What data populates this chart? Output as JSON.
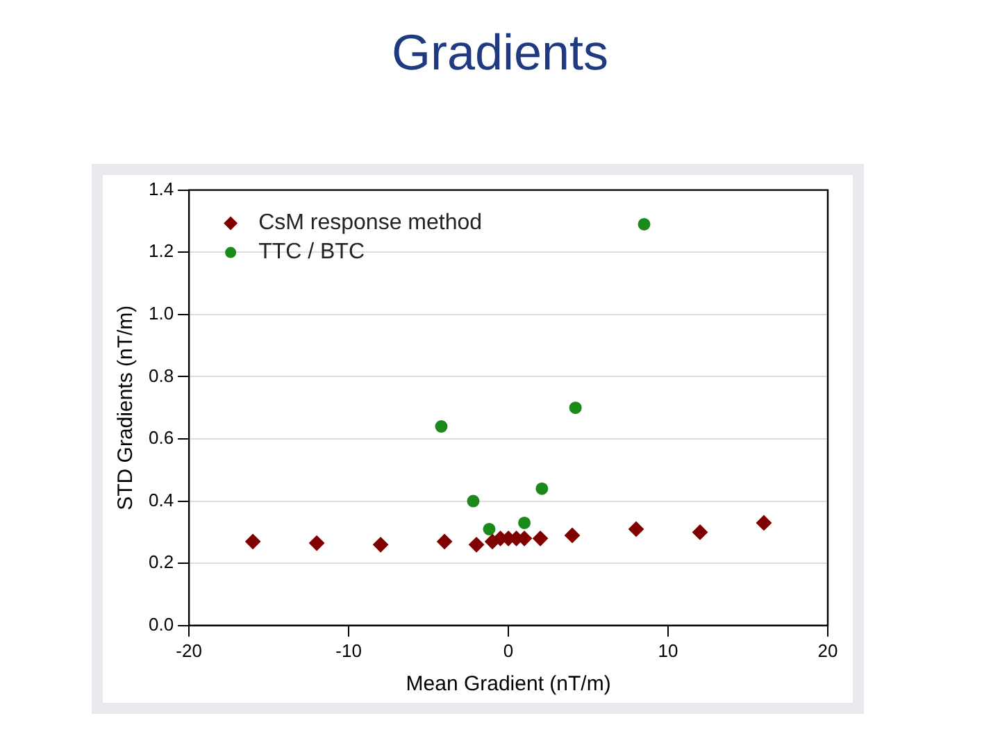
{
  "chart_data": {
    "type": "scatter",
    "title": "Gradients",
    "xlabel": "Mean Gradient (nT/m)",
    "ylabel": "STD Gradients (nT/m)",
    "series": [
      {
        "name": "CsM response method",
        "color": "#800000",
        "marker": "diamond",
        "x": [
          -16,
          -12,
          -8,
          -4,
          -2,
          -1,
          -0.5,
          0,
          0.5,
          1,
          2,
          4,
          8,
          12,
          16
        ],
        "values": [
          0.27,
          0.265,
          0.26,
          0.27,
          0.26,
          0.27,
          0.28,
          0.28,
          0.28,
          0.28,
          0.28,
          0.29,
          0.31,
          0.3,
          0.33
        ]
      },
      {
        "name": "TTC / BTC",
        "color": "#1a8a1a",
        "marker": "circle",
        "x": [
          -4.2,
          -2.2,
          -1.2,
          1,
          2.1,
          4.2,
          8.5
        ],
        "values": [
          0.64,
          0.4,
          0.31,
          0.33,
          0.44,
          0.7,
          1.29
        ]
      }
    ],
    "xlim": [
      -20,
      20
    ],
    "xticks": [
      -20,
      -10,
      0,
      10,
      20
    ],
    "ylim": [
      0,
      1.4
    ],
    "yticks": [
      {
        "value": 0,
        "label": "0.0"
      },
      0.2,
      0.4,
      0.6,
      0.8,
      {
        "value": 1,
        "label": "1.0"
      },
      1.2,
      1.4
    ],
    "grid": "y",
    "legend": "top left"
  }
}
